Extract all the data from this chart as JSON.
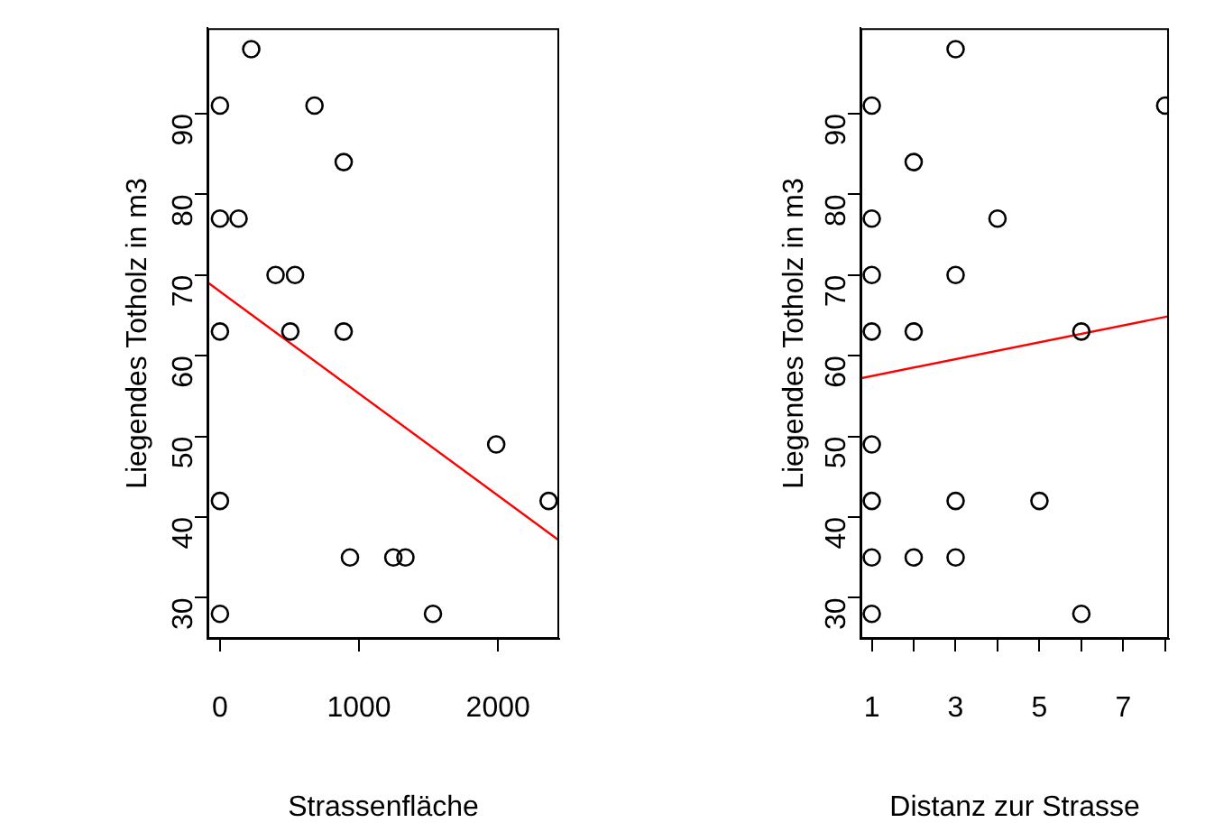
{
  "chart_data": [
    {
      "type": "scatter",
      "xlabel": "Strassenfläche",
      "ylabel": "Liegendes Totholz in m3",
      "xlim": [
        -90,
        2440
      ],
      "ylim": [
        24.9,
        100.6
      ],
      "xticks": [
        0,
        1000,
        2000
      ],
      "yticks": [
        30,
        40,
        50,
        60,
        70,
        80,
        90
      ],
      "grid": false,
      "legend": false,
      "series": [
        {
          "marker": "circle",
          "color": "#000000",
          "x": [
            0,
            225,
            680,
            890,
            0,
            134,
            400,
            540,
            0,
            506,
            890,
            1987,
            0,
            2364,
            935,
            1247,
            1334,
            0,
            1532
          ],
          "values": [
            91,
            98,
            91,
            84,
            77,
            77,
            70,
            70,
            63,
            63,
            63,
            49,
            42,
            42,
            35,
            35,
            35,
            28,
            28
          ]
        },
        {
          "type": "line",
          "color": "#ff0000",
          "x": [
            -90,
            2440
          ],
          "values": [
            69.1,
            37.1
          ]
        }
      ]
    },
    {
      "type": "scatter",
      "xlabel": "Distanz zur Strasse",
      "ylabel": "Liegendes Totholz in m3",
      "xlim": [
        0.73,
        8.09
      ],
      "ylim": [
        24.9,
        100.6
      ],
      "xticks": [
        1,
        {
          "value": 2,
          "label": null
        },
        3,
        {
          "value": 4,
          "label": null
        },
        5,
        {
          "value": 6,
          "label": null
        },
        7,
        {
          "value": 8,
          "label": null
        }
      ],
      "yticks": [
        30,
        40,
        50,
        60,
        70,
        80,
        90
      ],
      "grid": false,
      "legend": false,
      "series": [
        {
          "marker": "circle",
          "color": "#000000",
          "x": [
            1,
            1,
            1,
            1,
            1,
            1,
            1,
            1,
            2,
            2,
            2,
            3,
            3,
            3,
            3,
            4,
            5,
            6,
            6,
            8
          ],
          "values": [
            91,
            77,
            70,
            63,
            49,
            42,
            35,
            28,
            84,
            63,
            35,
            98,
            70,
            42,
            35,
            77,
            42,
            63,
            28,
            91
          ]
        },
        {
          "type": "line",
          "color": "#ff0000",
          "x": [
            0.73,
            8.09
          ],
          "values": [
            57.2,
            64.9
          ]
        }
      ]
    }
  ]
}
